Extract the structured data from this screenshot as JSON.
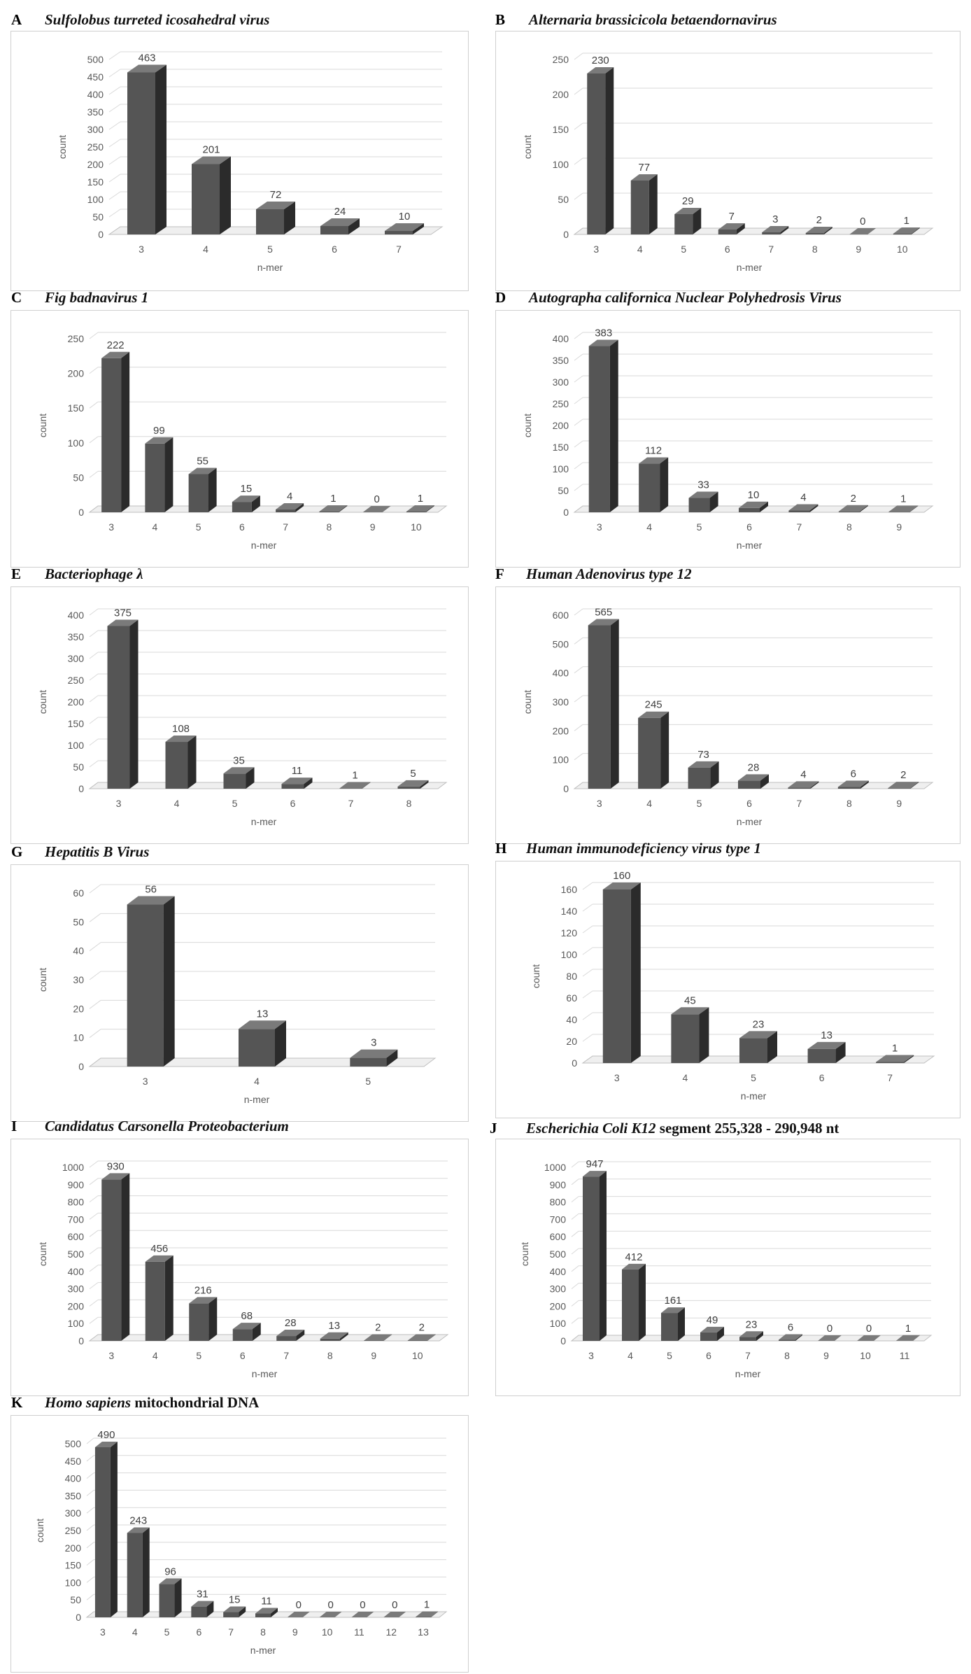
{
  "colors": {
    "bar_front": "#555555",
    "bar_side": "#2b2b2b",
    "bar_top": "#7a7a7a",
    "grid": "#d9d9d9",
    "floor": "#bfbfbf",
    "text": "#595959"
  },
  "chart_data": [
    {
      "id": "A",
      "letter": "A",
      "type": "bar",
      "title_parts": [
        {
          "text": "Sulfolobus turreted icosahedral virus",
          "italic": true
        }
      ],
      "xlabel": "n-mer",
      "ylabel": "count",
      "categories": [
        "3",
        "4",
        "5",
        "6",
        "7"
      ],
      "values": [
        463,
        201,
        72,
        24,
        10
      ],
      "yticks": [
        0,
        50,
        100,
        150,
        200,
        250,
        300,
        350,
        400,
        450,
        500
      ],
      "ylim": [
        0,
        500
      ]
    },
    {
      "id": "B",
      "letter": "B",
      "type": "bar",
      "title_parts": [
        {
          "text": "Alternaria brassicicola betaendornavirus",
          "italic": true
        }
      ],
      "xlabel": "n-mer",
      "ylabel": "count",
      "categories": [
        "3",
        "4",
        "5",
        "6",
        "7",
        "8",
        "9",
        "10"
      ],
      "values": [
        230,
        77,
        29,
        7,
        3,
        2,
        0,
        1
      ],
      "yticks": [
        0,
        50,
        100,
        150,
        200,
        250
      ],
      "ylim": [
        0,
        250
      ]
    },
    {
      "id": "C",
      "letter": "C",
      "type": "bar",
      "title_parts": [
        {
          "text": "Fig badnavirus 1",
          "italic": true
        }
      ],
      "xlabel": "n-mer",
      "ylabel": "count",
      "categories": [
        "3",
        "4",
        "5",
        "6",
        "7",
        "8",
        "9",
        "10"
      ],
      "values": [
        222,
        99,
        55,
        15,
        4,
        1,
        0,
        1
      ],
      "yticks": [
        0,
        50,
        100,
        150,
        200,
        250
      ],
      "ylim": [
        0,
        250
      ]
    },
    {
      "id": "D",
      "letter": "D",
      "type": "bar",
      "title_parts": [
        {
          "text": "Autographa californica Nuclear Polyhedrosis Virus",
          "italic": true
        }
      ],
      "xlabel": "n-mer",
      "ylabel": "count",
      "categories": [
        "3",
        "4",
        "5",
        "6",
        "7",
        "8",
        "9"
      ],
      "values": [
        383,
        112,
        33,
        10,
        4,
        2,
        1
      ],
      "yticks": [
        0,
        50,
        100,
        150,
        200,
        250,
        300,
        350,
        400
      ],
      "ylim": [
        0,
        400
      ]
    },
    {
      "id": "E",
      "letter": "E",
      "type": "bar",
      "title_parts": [
        {
          "text": "Bacteriophage λ",
          "italic": true
        }
      ],
      "xlabel": "n-mer",
      "ylabel": "count",
      "categories": [
        "3",
        "4",
        "5",
        "6",
        "7",
        "8"
      ],
      "values": [
        375,
        108,
        35,
        11,
        1,
        5
      ],
      "yticks": [
        0,
        50,
        100,
        150,
        200,
        250,
        300,
        350,
        400
      ],
      "ylim": [
        0,
        400
      ]
    },
    {
      "id": "F",
      "letter": "F",
      "type": "bar",
      "title_parts": [
        {
          "text": "Human Adenovirus type 12",
          "italic": true
        }
      ],
      "xlabel": "n-mer",
      "ylabel": "count",
      "categories": [
        "3",
        "4",
        "5",
        "6",
        "7",
        "8",
        "9"
      ],
      "values": [
        565,
        245,
        73,
        28,
        4,
        6,
        2
      ],
      "yticks": [
        0,
        100,
        200,
        300,
        400,
        500,
        600
      ],
      "ylim": [
        0,
        600
      ]
    },
    {
      "id": "G",
      "letter": "G",
      "type": "bar",
      "title_parts": [
        {
          "text": "Hepatitis B Virus",
          "italic": true
        }
      ],
      "xlabel": "n-mer",
      "ylabel": "count",
      "categories": [
        "3",
        "4",
        "5"
      ],
      "values": [
        56,
        13,
        3
      ],
      "yticks": [
        0,
        10,
        20,
        30,
        40,
        50,
        60
      ],
      "ylim": [
        0,
        60
      ]
    },
    {
      "id": "H",
      "letter": "H",
      "type": "bar",
      "title_parts": [
        {
          "text": "Human immunodeficiency virus type 1",
          "italic": true
        }
      ],
      "xlabel": "n-mer",
      "ylabel": "count",
      "categories": [
        "3",
        "4",
        "5",
        "6",
        "7"
      ],
      "values": [
        160,
        45,
        23,
        13,
        1
      ],
      "yticks": [
        0,
        20,
        40,
        60,
        80,
        100,
        120,
        140,
        160
      ],
      "ylim": [
        0,
        160
      ]
    },
    {
      "id": "I",
      "letter": "I",
      "type": "bar",
      "title_parts": [
        {
          "text": "Candidatus Carsonella Proteobacterium",
          "italic": true
        }
      ],
      "xlabel": "n-mer",
      "ylabel": "count",
      "categories": [
        "3",
        "4",
        "5",
        "6",
        "7",
        "8",
        "9",
        "10"
      ],
      "values": [
        930,
        456,
        216,
        68,
        28,
        13,
        2,
        2
      ],
      "yticks": [
        0,
        100,
        200,
        300,
        400,
        500,
        600,
        700,
        800,
        900,
        1000
      ],
      "ylim": [
        0,
        1000
      ]
    },
    {
      "id": "J",
      "letter": "J",
      "type": "bar",
      "title_parts": [
        {
          "text": "Escherichia Coli K12",
          "italic": true
        },
        {
          "text": " segment 255,328 - 290,948 nt",
          "italic": false
        }
      ],
      "xlabel": "n-mer",
      "ylabel": "count",
      "categories": [
        "3",
        "4",
        "5",
        "6",
        "7",
        "8",
        "9",
        "10",
        "11"
      ],
      "values": [
        947,
        412,
        161,
        49,
        23,
        6,
        0,
        0,
        1
      ],
      "yticks": [
        0,
        100,
        200,
        300,
        400,
        500,
        600,
        700,
        800,
        900,
        1000
      ],
      "ylim": [
        0,
        1000
      ]
    },
    {
      "id": "K",
      "letter": "K",
      "type": "bar",
      "title_parts": [
        {
          "text": "Homo sapiens",
          "italic": true
        },
        {
          "text": " mitochondrial DNA",
          "italic": false
        }
      ],
      "xlabel": "n-mer",
      "ylabel": "count",
      "categories": [
        "3",
        "4",
        "5",
        "6",
        "7",
        "8",
        "9",
        "10",
        "11",
        "12",
        "13"
      ],
      "values": [
        490,
        243,
        96,
        31,
        15,
        11,
        0,
        0,
        0,
        0,
        1
      ],
      "yticks": [
        0,
        50,
        100,
        150,
        200,
        250,
        300,
        350,
        400,
        450,
        500
      ],
      "ylim": [
        0,
        500
      ]
    }
  ]
}
